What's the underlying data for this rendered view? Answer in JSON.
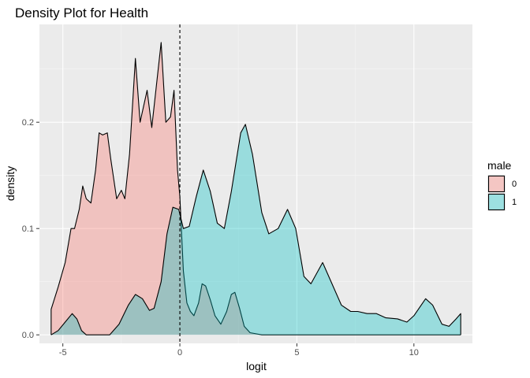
{
  "chart_data": {
    "type": "area",
    "title": "Density Plot for Health",
    "xlabel": "logit",
    "ylabel": "density",
    "xlim": [
      -6.0,
      12.5
    ],
    "ylim": [
      -0.008,
      0.292
    ],
    "xticks": [
      -5,
      0,
      5,
      10
    ],
    "xtick_labels": [
      "-5",
      "0",
      "5",
      "10"
    ],
    "yticks": [
      0.0,
      0.1,
      0.2
    ],
    "ytick_labels": [
      "0.0",
      "0.1",
      "0.2"
    ],
    "vline_x": 0,
    "grid": true,
    "legend": {
      "title": "male",
      "position": "right",
      "entries": [
        {
          "label": "0",
          "color": "#F8766D"
        },
        {
          "label": "1",
          "color": "#00BFC4"
        }
      ]
    },
    "series": [
      {
        "name": "0",
        "color": "#F8766D",
        "points": [
          [
            -5.5,
            0.024
          ],
          [
            -5.2,
            0.045
          ],
          [
            -4.9,
            0.068
          ],
          [
            -4.65,
            0.1
          ],
          [
            -4.5,
            0.1
          ],
          [
            -4.3,
            0.118
          ],
          [
            -4.15,
            0.14
          ],
          [
            -4.0,
            0.128
          ],
          [
            -3.8,
            0.124
          ],
          [
            -3.6,
            0.155
          ],
          [
            -3.45,
            0.19
          ],
          [
            -3.3,
            0.188
          ],
          [
            -3.1,
            0.19
          ],
          [
            -2.95,
            0.165
          ],
          [
            -2.7,
            0.128
          ],
          [
            -2.5,
            0.136
          ],
          [
            -2.35,
            0.128
          ],
          [
            -2.15,
            0.17
          ],
          [
            -1.9,
            0.26
          ],
          [
            -1.7,
            0.2
          ],
          [
            -1.4,
            0.23
          ],
          [
            -1.2,
            0.195
          ],
          [
            -1.0,
            0.235
          ],
          [
            -0.8,
            0.275
          ],
          [
            -0.6,
            0.2
          ],
          [
            -0.4,
            0.205
          ],
          [
            -0.25,
            0.23
          ],
          [
            -0.1,
            0.155
          ],
          [
            0.0,
            0.13
          ],
          [
            0.15,
            0.06
          ],
          [
            0.3,
            0.03
          ],
          [
            0.45,
            0.022
          ],
          [
            0.6,
            0.018
          ],
          [
            0.8,
            0.03
          ],
          [
            0.95,
            0.048
          ],
          [
            1.1,
            0.046
          ],
          [
            1.3,
            0.033
          ],
          [
            1.5,
            0.018
          ],
          [
            1.75,
            0.01
          ],
          [
            2.0,
            0.022
          ],
          [
            2.2,
            0.038
          ],
          [
            2.35,
            0.04
          ],
          [
            2.55,
            0.025
          ],
          [
            2.75,
            0.008
          ],
          [
            3.0,
            0.002
          ],
          [
            3.5,
            0.0
          ],
          [
            12.0,
            0.0
          ]
        ]
      },
      {
        "name": "1",
        "color": "#00BFC4",
        "points": [
          [
            -5.5,
            0.0
          ],
          [
            -5.2,
            0.004
          ],
          [
            -4.9,
            0.012
          ],
          [
            -4.6,
            0.02
          ],
          [
            -4.4,
            0.015
          ],
          [
            -4.2,
            0.004
          ],
          [
            -4.0,
            0.0
          ],
          [
            -3.0,
            0.0
          ],
          [
            -2.6,
            0.01
          ],
          [
            -2.2,
            0.028
          ],
          [
            -1.9,
            0.038
          ],
          [
            -1.6,
            0.034
          ],
          [
            -1.3,
            0.023
          ],
          [
            -1.1,
            0.025
          ],
          [
            -0.8,
            0.05
          ],
          [
            -0.55,
            0.095
          ],
          [
            -0.3,
            0.12
          ],
          [
            -0.05,
            0.118
          ],
          [
            0.15,
            0.1
          ],
          [
            0.4,
            0.102
          ],
          [
            0.7,
            0.13
          ],
          [
            1.0,
            0.155
          ],
          [
            1.3,
            0.135
          ],
          [
            1.6,
            0.105
          ],
          [
            1.9,
            0.1
          ],
          [
            2.2,
            0.135
          ],
          [
            2.6,
            0.19
          ],
          [
            2.8,
            0.198
          ],
          [
            3.1,
            0.17
          ],
          [
            3.5,
            0.115
          ],
          [
            3.8,
            0.095
          ],
          [
            4.2,
            0.1
          ],
          [
            4.6,
            0.118
          ],
          [
            4.95,
            0.1
          ],
          [
            5.3,
            0.055
          ],
          [
            5.6,
            0.048
          ],
          [
            6.1,
            0.068
          ],
          [
            6.5,
            0.048
          ],
          [
            6.9,
            0.028
          ],
          [
            7.3,
            0.022
          ],
          [
            7.6,
            0.022
          ],
          [
            8.0,
            0.02
          ],
          [
            8.4,
            0.02
          ],
          [
            8.8,
            0.016
          ],
          [
            9.3,
            0.015
          ],
          [
            9.7,
            0.012
          ],
          [
            10.0,
            0.018
          ],
          [
            10.5,
            0.034
          ],
          [
            10.8,
            0.028
          ],
          [
            11.2,
            0.01
          ],
          [
            11.5,
            0.008
          ],
          [
            11.8,
            0.015
          ],
          [
            12.0,
            0.02
          ]
        ]
      }
    ]
  }
}
